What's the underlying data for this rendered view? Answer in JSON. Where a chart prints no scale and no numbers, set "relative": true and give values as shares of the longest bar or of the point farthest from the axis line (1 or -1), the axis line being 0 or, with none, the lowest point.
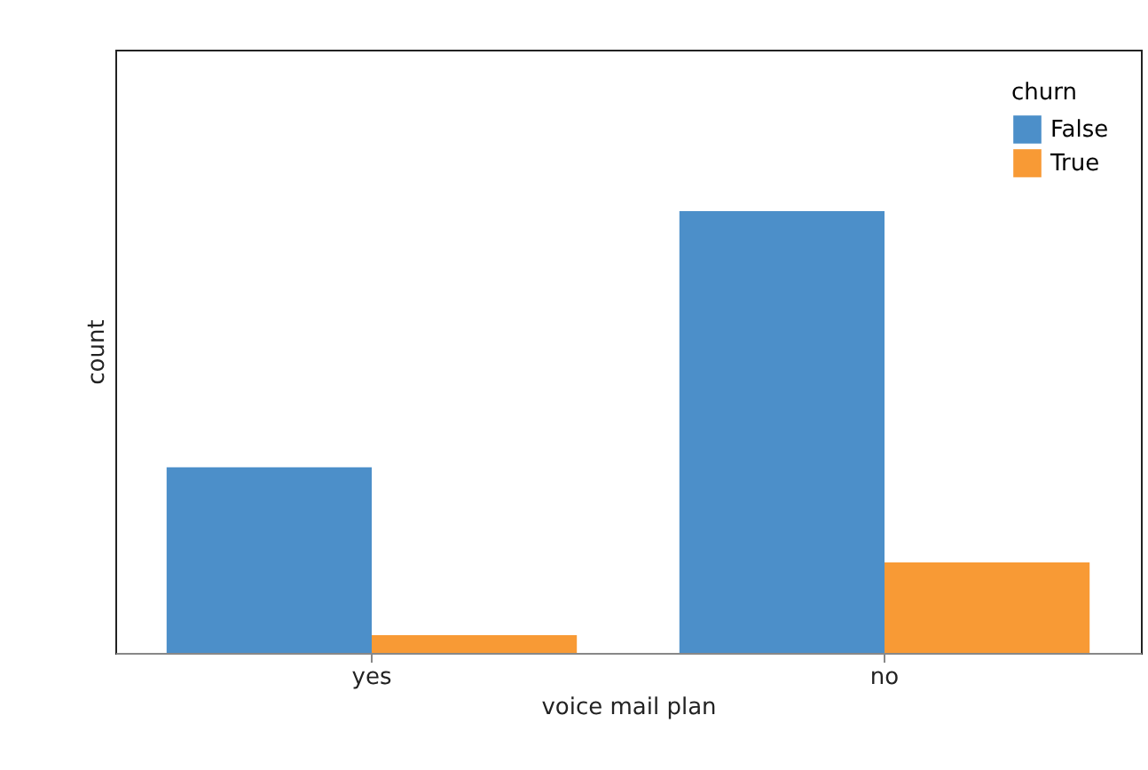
{
  "chart_data": {
    "type": "bar",
    "xlabel": "voice mail plan",
    "ylabel": "count",
    "legend_title": "churn",
    "legend": "top right",
    "relative": true,
    "categories": [
      "yes",
      "no"
    ],
    "series": [
      {
        "name": "False",
        "color": "#4c8fc9",
        "values": [
          0.42,
          1
        ]
      },
      {
        "name": "True",
        "color": "#f89a35",
        "values": [
          0.04,
          0.205
        ]
      }
    ]
  }
}
